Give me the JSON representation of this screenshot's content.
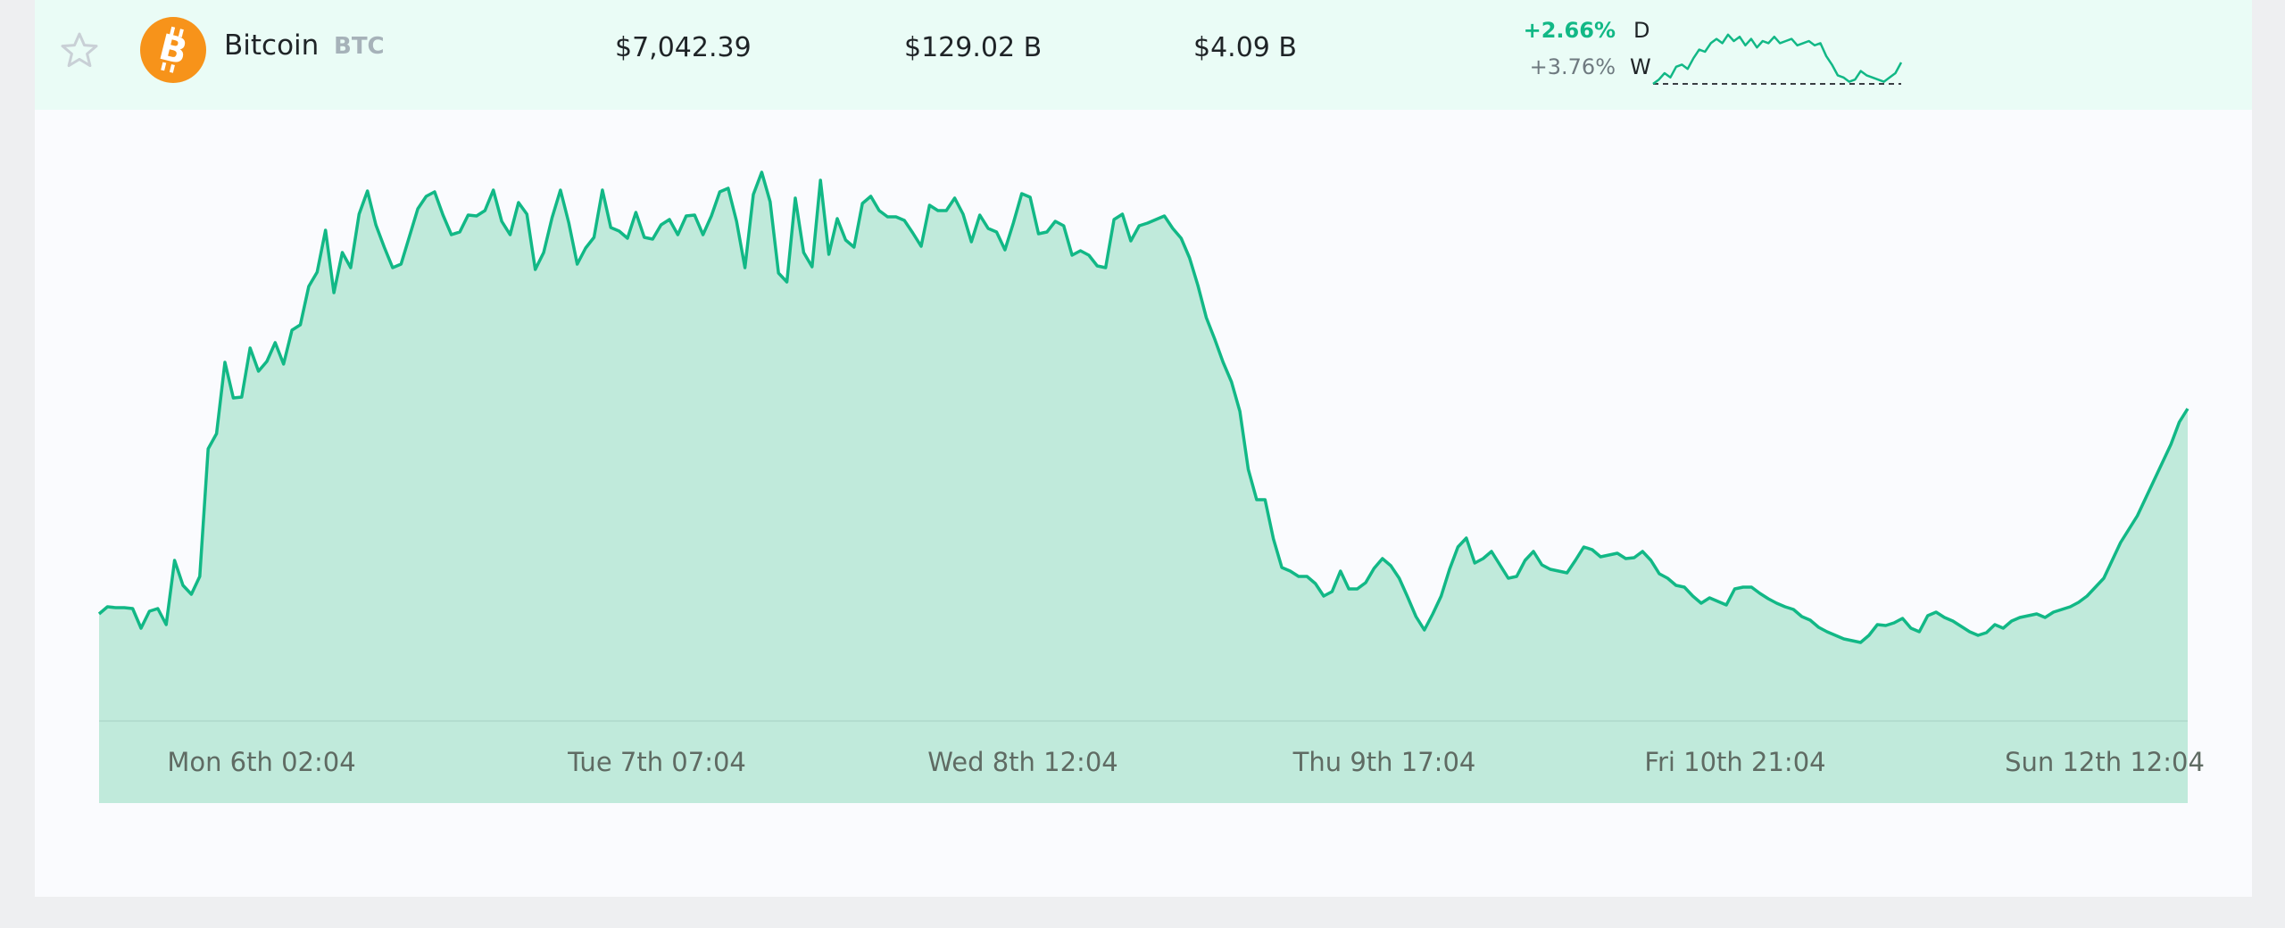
{
  "asset": {
    "name": "Bitcoin",
    "ticker": "BTC",
    "logo_icon": "bitcoin-icon",
    "favorite_icon": "star-outline-icon",
    "price": "$7,042.39",
    "market_cap": "$129.02 B",
    "volume": "$4.09 B",
    "change_day": "+2.66%",
    "change_day_label": "D",
    "change_week": "+3.76%",
    "change_week_label": "W"
  },
  "colors": {
    "accent": "#12b886",
    "fill": "#c0eadb",
    "row_bg": "#eafcf6",
    "bitcoin_orange": "#f7931a"
  },
  "chart_data": {
    "type": "area",
    "x_tick_labels": [
      "Mon 6th 02:04",
      "Tue 7th 07:04",
      "Wed 8th 12:04",
      "Thu 9th 17:04",
      "Fri 10th 21:04",
      "Sun 12th 12:04"
    ],
    "values": [
      120,
      128,
      127,
      127,
      126,
      104,
      123,
      126,
      108,
      180,
      152,
      142,
      162,
      305,
      322,
      402,
      362,
      363,
      418,
      392,
      403,
      424,
      400,
      438,
      444,
      487,
      503,
      550,
      480,
      525,
      508,
      568,
      594,
      556,
      531,
      508,
      512,
      543,
      574,
      588,
      593,
      567,
      545,
      548,
      567,
      566,
      572,
      595,
      560,
      545,
      581,
      568,
      506,
      525,
      564,
      595,
      558,
      512,
      530,
      542,
      595,
      553,
      549,
      541,
      570,
      542,
      540,
      556,
      562,
      545,
      566,
      567,
      545,
      566,
      593,
      597,
      560,
      508,
      590,
      615,
      582,
      502,
      492,
      586,
      525,
      509,
      606,
      523,
      563,
      539,
      531,
      580,
      588,
      572,
      565,
      565,
      561,
      547,
      532,
      578,
      572,
      572,
      586,
      568,
      537,
      567,
      552,
      548,
      528,
      558,
      591,
      587,
      546,
      548,
      560,
      555,
      522,
      527,
      522,
      510,
      508,
      562,
      568,
      538,
      555,
      558,
      562,
      566,
      552,
      541,
      519,
      488,
      452,
      428,
      402,
      380,
      347,
      282,
      248,
      248,
      204,
      172,
      168,
      162,
      162,
      154,
      140,
      145,
      168,
      148,
      148,
      155,
      171,
      182,
      174,
      160,
      139,
      117,
      102,
      120,
      140,
      170,
      195,
      205,
      177,
      182,
      190,
      175,
      160,
      162,
      180,
      190,
      175,
      170,
      168,
      166,
      180,
      195,
      192,
      184,
      186,
      188,
      182,
      183,
      190,
      180,
      165,
      160,
      152,
      150,
      140,
      132,
      138,
      134,
      130,
      148,
      150,
      150,
      143,
      137,
      132,
      128,
      125,
      117,
      113,
      105,
      100,
      96,
      92,
      90,
      88,
      96,
      108,
      107,
      110,
      115,
      104,
      100,
      118,
      122,
      116,
      112,
      106,
      100,
      96,
      99,
      108,
      104,
      112,
      116,
      118,
      120,
      116,
      122,
      125,
      128,
      133,
      140,
      150,
      160,
      180,
      200,
      215,
      230,
      250,
      270,
      290,
      310,
      335,
      350
    ],
    "baseline_value": 0,
    "fill": "area",
    "grid": false
  },
  "sparkline": {
    "values": [
      0,
      0.2,
      0.5,
      0.3,
      0.8,
      0.9,
      0.7,
      1.2,
      1.6,
      1.5,
      1.9,
      2.1,
      1.9,
      2.3,
      2.0,
      2.2,
      1.8,
      2.1,
      1.7,
      2.0,
      1.9,
      2.2,
      1.9,
      2.0,
      2.1,
      1.8,
      1.9,
      2.0,
      1.8,
      1.9,
      1.3,
      0.9,
      0.4,
      0.3,
      0.1,
      0.2,
      0.6,
      0.4,
      0.3,
      0.2,
      0.1,
      0.3,
      0.5,
      1.0
    ],
    "baseline": 0
  }
}
